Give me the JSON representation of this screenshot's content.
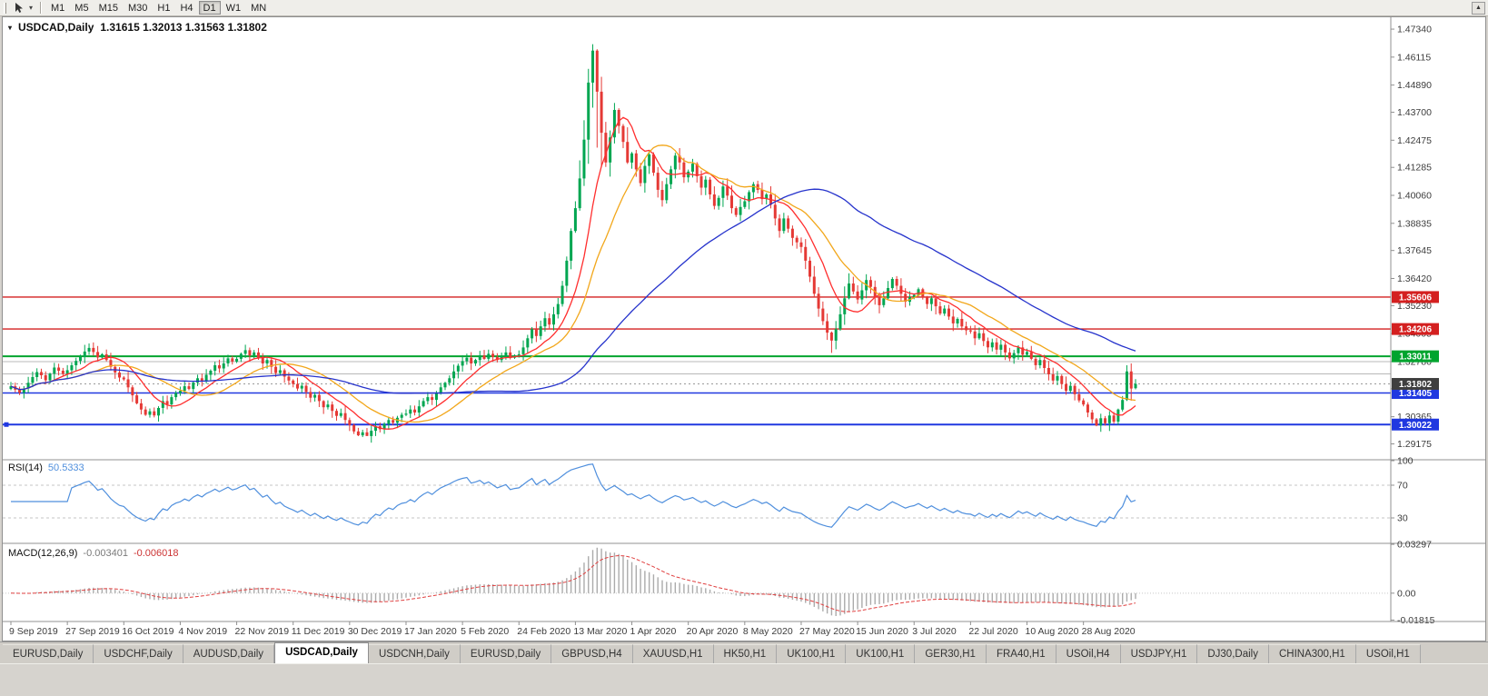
{
  "toolbar": {
    "timeframes": [
      "M1",
      "M5",
      "M15",
      "M30",
      "H1",
      "H4",
      "D1",
      "W1",
      "MN"
    ],
    "active": "D1"
  },
  "chart": {
    "title": "USDCAD,Daily",
    "ohlc": "1.31615 1.32013 1.31563 1.31802",
    "price_axis_ticks": [
      "1.47340",
      "1.46115",
      "1.44890",
      "1.43700",
      "1.42475",
      "1.41285",
      "1.40060",
      "1.38835",
      "1.37645",
      "1.36420",
      "1.35230",
      "1.34005",
      "1.32780",
      "1.31590",
      "1.30365",
      "1.29175"
    ],
    "levels": [
      {
        "price": 1.35606,
        "label": "1.35606",
        "color": "#d42020",
        "width": 1.4
      },
      {
        "price": 1.34206,
        "label": "1.34206",
        "color": "#d42020",
        "width": 1.4
      },
      {
        "price": 1.33011,
        "label": "1.33011",
        "color": "#00a42e",
        "width": 2
      },
      {
        "price": 1.31405,
        "label": "1.31405",
        "color": "#2038e0",
        "width": 1.6
      },
      {
        "price": 1.30022,
        "label": "1.30022",
        "color": "#2038e0",
        "width": 2,
        "handle": true
      }
    ],
    "gray_levels": [
      1.3278,
      1.3224
    ],
    "current_price": {
      "price": 1.31802,
      "label": "1.31802",
      "color": "#3f3f3f"
    },
    "colors": {
      "up": "#00a651",
      "down": "#e53935",
      "axis_text": "#3c3c3c",
      "separator": "#909090",
      "grid_gray": "#b8b8b8"
    }
  },
  "chart_data": {
    "type": "candlestick",
    "symbol": "USDCAD",
    "timeframe": "Daily",
    "x_labels": [
      "9 Sep 2019",
      "27 Sep 2019",
      "16 Oct 2019",
      "4 Nov 2019",
      "22 Nov 2019",
      "11 Dec 2019",
      "30 Dec 2019",
      "17 Jan 2020",
      "5 Feb 2020",
      "24 Feb 2020",
      "13 Mar 2020",
      "1 Apr 2020",
      "20 Apr 2020",
      "8 May 2020",
      "27 May 2020",
      "15 Jun 2020",
      "3 Jul 2020",
      "22 Jul 2020",
      "10 Aug 2020",
      "28 Aug 2020"
    ],
    "x_label_step": 13,
    "price_scale": {
      "top": 1.4778,
      "bottom": 1.2852
    },
    "closes": [
      1.317,
      1.3155,
      1.3142,
      1.316,
      1.3185,
      1.321,
      1.3232,
      1.3218,
      1.3196,
      1.3225,
      1.3252,
      1.3238,
      1.3224,
      1.324,
      1.3262,
      1.3281,
      1.3299,
      1.3322,
      1.3338,
      1.332,
      1.3296,
      1.331,
      1.3285,
      1.3255,
      1.323,
      1.3208,
      1.32,
      1.3165,
      1.313,
      1.3095,
      1.3068,
      1.3045,
      1.306,
      1.3042,
      1.3075,
      1.3105,
      1.309,
      1.3122,
      1.314,
      1.315,
      1.317,
      1.3158,
      1.3186,
      1.3205,
      1.3192,
      1.322,
      1.3238,
      1.3262,
      1.3248,
      1.327,
      1.3292,
      1.3278,
      1.329,
      1.3312,
      1.3328,
      1.3305,
      1.3318,
      1.3295,
      1.327,
      1.3285,
      1.3255,
      1.3228,
      1.324,
      1.3212,
      1.3195,
      1.318,
      1.316,
      1.3172,
      1.3145,
      1.312,
      1.3132,
      1.3105,
      1.3078,
      1.309,
      1.3062,
      1.304,
      1.3052,
      1.3022,
      1.3,
      1.2972,
      1.2955,
      1.2968,
      1.2952,
      1.2975,
      1.2995,
      1.2982,
      1.3005,
      1.3022,
      1.301,
      1.3032,
      1.3045,
      1.305,
      1.3068,
      1.3055,
      1.3082,
      1.3105,
      1.3122,
      1.311,
      1.3138,
      1.3165,
      1.3185,
      1.3205,
      1.3235,
      1.326,
      1.328,
      1.3295,
      1.327,
      1.3285,
      1.3305,
      1.329,
      1.3312,
      1.3298,
      1.3285,
      1.33,
      1.3318,
      1.3295,
      1.3305,
      1.331,
      1.334,
      1.338,
      1.342,
      1.339,
      1.3432,
      1.3468,
      1.344,
      1.3485,
      1.353,
      1.361,
      1.372,
      1.385,
      1.395,
      1.408,
      1.425,
      1.45,
      1.464,
      1.446,
      1.428,
      1.415,
      1.426,
      1.438,
      1.431,
      1.424,
      1.415,
      1.419,
      1.412,
      1.406,
      1.4135,
      1.4185,
      1.4105,
      1.403,
      1.3985,
      1.4055,
      1.412,
      1.418,
      1.415,
      1.4085,
      1.411,
      1.4145,
      1.409,
      1.404,
      1.4075,
      1.401,
      1.396,
      1.3995,
      1.4045,
      1.4005,
      1.395,
      1.392,
      1.3955,
      1.398,
      1.402,
      1.4055,
      1.403,
      1.399,
      1.401,
      1.3965,
      1.3905,
      1.385,
      1.3905,
      1.386,
      1.382,
      1.38,
      1.378,
      1.372,
      1.365,
      1.3575,
      1.351,
      1.3455,
      1.3405,
      1.337,
      1.342,
      1.3485,
      1.3555,
      1.362,
      1.3585,
      1.355,
      1.359,
      1.3635,
      1.3605,
      1.356,
      1.3525,
      1.3555,
      1.36,
      1.364,
      1.361,
      1.3575,
      1.354,
      1.356,
      1.357,
      1.3595,
      1.356,
      1.353,
      1.3555,
      1.352,
      1.3488,
      1.351,
      1.3475,
      1.3445,
      1.3465,
      1.3432,
      1.3415,
      1.341,
      1.338,
      1.3402,
      1.3368,
      1.334,
      1.3362,
      1.333,
      1.3352,
      1.3318,
      1.3292,
      1.3315,
      1.334,
      1.3308,
      1.332,
      1.329,
      1.3262,
      1.3285,
      1.325,
      1.3222,
      1.3195,
      1.3215,
      1.318,
      1.315,
      1.3172,
      1.3135,
      1.3108,
      1.309,
      1.3055,
      1.3025,
      1.2998,
      1.303,
      1.3008,
      1.3042,
      1.3015,
      1.3068,
      1.311,
      1.3235,
      1.316,
      1.31802
    ],
    "overrides": {
      "80": {
        "l": 1.29515
      },
      "82": {
        "l": 1.2952
      },
      "132": {
        "h": 1.4335
      },
      "133": {
        "h": 1.456
      },
      "134": {
        "h": 1.4668,
        "l": 1.439
      },
      "135": {
        "l": 1.4215
      },
      "136": {
        "l": 1.413
      },
      "189": {
        "l": 1.3316
      },
      "250": {
        "l": 1.29948
      },
      "257": {
        "h": 1.3262
      },
      "259": {
        "o": 1.31615,
        "h": 1.32013,
        "l": 1.31563,
        "c": 1.31802
      }
    },
    "moving_averages": [
      {
        "period": 10,
        "color": "#ff2e2e"
      },
      {
        "period": 20,
        "color": "#f2a71b"
      },
      {
        "period": 60,
        "color": "#2633cc"
      }
    ]
  },
  "rsi": {
    "label": "RSI(14)",
    "value": "50.5333",
    "period": 14,
    "color": "#4f8fdd",
    "axis": [
      {
        "label": "100",
        "value": 100
      },
      {
        "label": "70",
        "value": 70
      },
      {
        "label": "30",
        "value": 30
      }
    ],
    "levels": [
      70,
      30
    ]
  },
  "macd": {
    "label": "MACD(12,26,9)",
    "value_main": "-0.003401",
    "value_signal": "-0.006018",
    "params": {
      "fast": 12,
      "slow": 26,
      "signal": 9
    },
    "hist_color": "#ababab",
    "signal_color": "#e04040",
    "range": {
      "max": 0.033,
      "min": -0.0185
    },
    "axis": [
      {
        "label": "0.03297",
        "value": 0.03297
      },
      {
        "label": "0.00",
        "value": 0
      },
      {
        "label": "-0.01815",
        "value": -0.01815
      }
    ]
  },
  "tabs": {
    "active_index": 3,
    "items": [
      "EURUSD,Daily",
      "USDCHF,Daily",
      "AUDUSD,Daily",
      "USDCAD,Daily",
      "USDCNH,Daily",
      "EURUSD,Daily",
      "GBPUSD,H4",
      "XAUUSD,H1",
      "HK50,H1",
      "UK100,H1",
      "UK100,H1",
      "GER30,H1",
      "FRA40,H1",
      "USOil,H4",
      "USDJPY,H1",
      "DJ30,Daily",
      "CHINA300,H1",
      "USOil,H1"
    ]
  }
}
